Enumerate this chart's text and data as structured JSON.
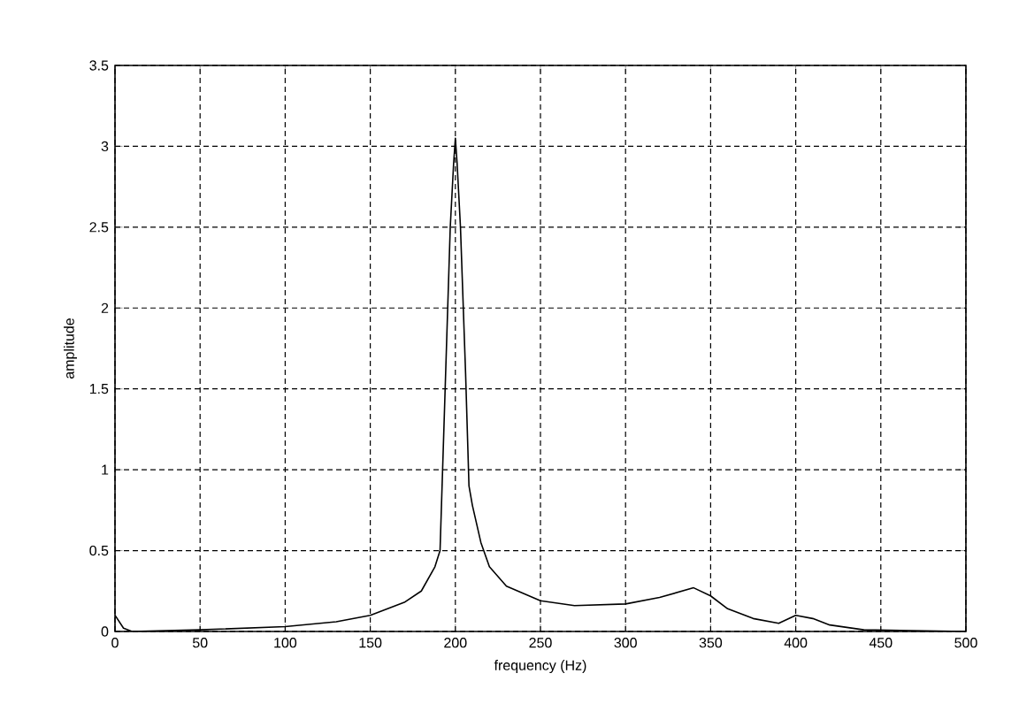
{
  "chart_data": {
    "type": "line",
    "xlabel": "frequency (Hz)",
    "ylabel": "amplitude",
    "color": "#000000",
    "grid": true,
    "xlim": [
      0,
      500
    ],
    "ylim": [
      0,
      3.5
    ],
    "xticks": [
      0,
      50,
      100,
      150,
      200,
      250,
      300,
      350,
      400,
      450,
      500
    ],
    "yticks": [
      0,
      0.5,
      1,
      1.5,
      2,
      2.5,
      3,
      3.5
    ],
    "x": [
      0,
      5,
      10,
      50,
      100,
      130,
      150,
      170,
      180,
      188,
      191,
      194,
      197,
      199,
      200,
      201,
      203,
      206,
      208,
      210,
      215,
      220,
      230,
      250,
      270,
      300,
      320,
      340,
      350,
      360,
      375,
      390,
      400,
      410,
      420,
      440,
      500
    ],
    "values": [
      0.1,
      0.02,
      0,
      0.01,
      0.03,
      0.06,
      0.1,
      0.18,
      0.25,
      0.4,
      0.5,
      1.5,
      2.5,
      2.9,
      3.05,
      2.9,
      2.5,
      1.6,
      0.9,
      0.78,
      0.55,
      0.4,
      0.28,
      0.19,
      0.16,
      0.17,
      0.21,
      0.27,
      0.22,
      0.14,
      0.08,
      0.05,
      0.1,
      0.08,
      0.04,
      0.01,
      0
    ]
  }
}
